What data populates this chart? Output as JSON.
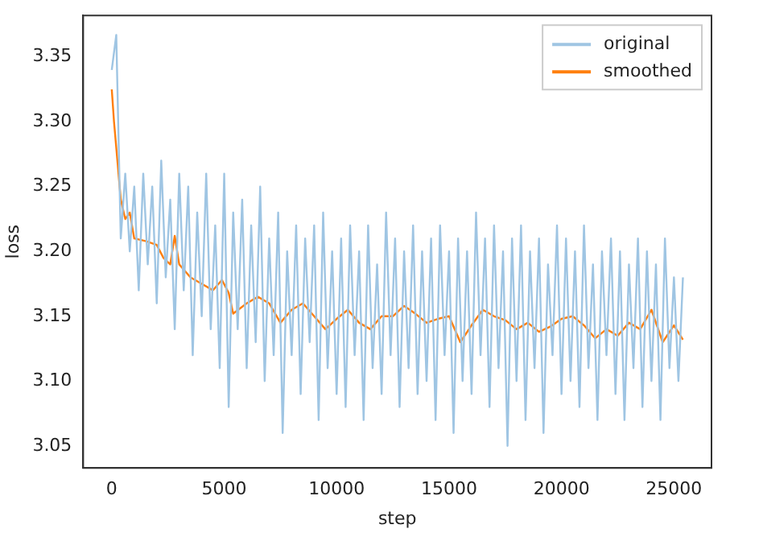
{
  "chart_data": {
    "type": "line",
    "xlabel": "step",
    "ylabel": "loss",
    "xlim": [
      -1270,
      26670
    ],
    "ylim": [
      3.033,
      3.382
    ],
    "xticks": [
      0,
      5000,
      10000,
      15000,
      20000,
      25000
    ],
    "yticks": [
      3.05,
      {
        "value": 3.1,
        "label": "3.10"
      },
      3.15,
      {
        "value": 3.2,
        "label": "3.20"
      },
      3.25,
      {
        "value": 3.3,
        "label": "3.30"
      },
      3.35
    ],
    "grid": false,
    "legend": "top right",
    "marker": "none",
    "line_style": "solid",
    "series": [
      {
        "name": "original",
        "color": "#9fc5e3",
        "x": [
          0,
          200,
          400,
          600,
          800,
          1000,
          1200,
          1400,
          1600,
          1800,
          2000,
          2200,
          2400,
          2600,
          2800,
          3000,
          3200,
          3400,
          3600,
          3800,
          4000,
          4200,
          4400,
          4600,
          4800,
          5000,
          5200,
          5400,
          5600,
          5800,
          6000,
          6200,
          6400,
          6600,
          6800,
          7000,
          7200,
          7400,
          7600,
          7800,
          8000,
          8200,
          8400,
          8600,
          8800,
          9000,
          9200,
          9400,
          9600,
          9800,
          10000,
          10200,
          10400,
          10600,
          10800,
          11000,
          11200,
          11400,
          11600,
          11800,
          12000,
          12200,
          12400,
          12600,
          12800,
          13000,
          13200,
          13400,
          13600,
          13800,
          14000,
          14200,
          14400,
          14600,
          14800,
          15000,
          15200,
          15400,
          15600,
          15800,
          16000,
          16200,
          16400,
          16600,
          16800,
          17000,
          17200,
          17400,
          17600,
          17800,
          18000,
          18200,
          18400,
          18600,
          18800,
          19000,
          19200,
          19400,
          19600,
          19800,
          20000,
          20200,
          20400,
          20600,
          20800,
          21000,
          21200,
          21400,
          21600,
          21800,
          22000,
          22200,
          22400,
          22600,
          22800,
          23000,
          23200,
          23400,
          23600,
          23800,
          24000,
          24200,
          24400,
          24600,
          24800,
          25000,
          25200,
          25400
        ],
        "values": [
          3.34,
          3.367,
          3.21,
          3.26,
          3.2,
          3.25,
          3.17,
          3.26,
          3.19,
          3.25,
          3.16,
          3.27,
          3.18,
          3.24,
          3.14,
          3.26,
          3.17,
          3.25,
          3.12,
          3.23,
          3.15,
          3.26,
          3.14,
          3.22,
          3.11,
          3.26,
          3.08,
          3.23,
          3.14,
          3.24,
          3.11,
          3.22,
          3.13,
          3.25,
          3.1,
          3.21,
          3.12,
          3.23,
          3.06,
          3.2,
          3.12,
          3.22,
          3.09,
          3.21,
          3.13,
          3.22,
          3.07,
          3.23,
          3.11,
          3.2,
          3.09,
          3.21,
          3.08,
          3.22,
          3.12,
          3.2,
          3.07,
          3.22,
          3.11,
          3.19,
          3.09,
          3.23,
          3.12,
          3.21,
          3.08,
          3.2,
          3.11,
          3.22,
          3.09,
          3.2,
          3.1,
          3.21,
          3.07,
          3.22,
          3.12,
          3.2,
          3.06,
          3.21,
          3.1,
          3.2,
          3.09,
          3.23,
          3.12,
          3.21,
          3.08,
          3.22,
          3.11,
          3.2,
          3.05,
          3.21,
          3.1,
          3.22,
          3.07,
          3.2,
          3.11,
          3.21,
          3.06,
          3.19,
          3.12,
          3.22,
          3.09,
          3.21,
          3.1,
          3.2,
          3.08,
          3.22,
          3.11,
          3.19,
          3.07,
          3.2,
          3.12,
          3.21,
          3.09,
          3.2,
          3.07,
          3.19,
          3.11,
          3.21,
          3.08,
          3.2,
          3.1,
          3.19,
          3.07,
          3.21,
          3.11,
          3.18,
          3.1,
          3.18
        ]
      },
      {
        "name": "smoothed",
        "color": "#ff7f0e",
        "x": [
          0,
          100,
          200,
          400,
          600,
          800,
          1000,
          1500,
          2000,
          2300,
          2600,
          2800,
          3000,
          3500,
          4000,
          4500,
          4900,
          5200,
          5400,
          6000,
          6500,
          7000,
          7500,
          8000,
          8500,
          9000,
          9500,
          10000,
          10500,
          11000,
          11500,
          12000,
          12500,
          13000,
          13500,
          14000,
          14500,
          15000,
          15500,
          16000,
          16500,
          17000,
          17500,
          18000,
          18500,
          19000,
          19500,
          20000,
          20500,
          21000,
          21500,
          22000,
          22500,
          23000,
          23500,
          24000,
          24500,
          25000,
          25400
        ],
        "values": [
          3.325,
          3.3,
          3.28,
          3.24,
          3.225,
          3.23,
          3.21,
          3.208,
          3.205,
          3.195,
          3.19,
          3.212,
          3.19,
          3.18,
          3.175,
          3.17,
          3.178,
          3.168,
          3.152,
          3.16,
          3.165,
          3.16,
          3.145,
          3.155,
          3.16,
          3.15,
          3.14,
          3.148,
          3.155,
          3.145,
          3.14,
          3.15,
          3.15,
          3.158,
          3.152,
          3.145,
          3.148,
          3.15,
          3.13,
          3.143,
          3.155,
          3.15,
          3.147,
          3.14,
          3.145,
          3.138,
          3.142,
          3.148,
          3.15,
          3.143,
          3.133,
          3.14,
          3.135,
          3.145,
          3.14,
          3.155,
          3.13,
          3.143,
          3.132
        ]
      }
    ]
  }
}
